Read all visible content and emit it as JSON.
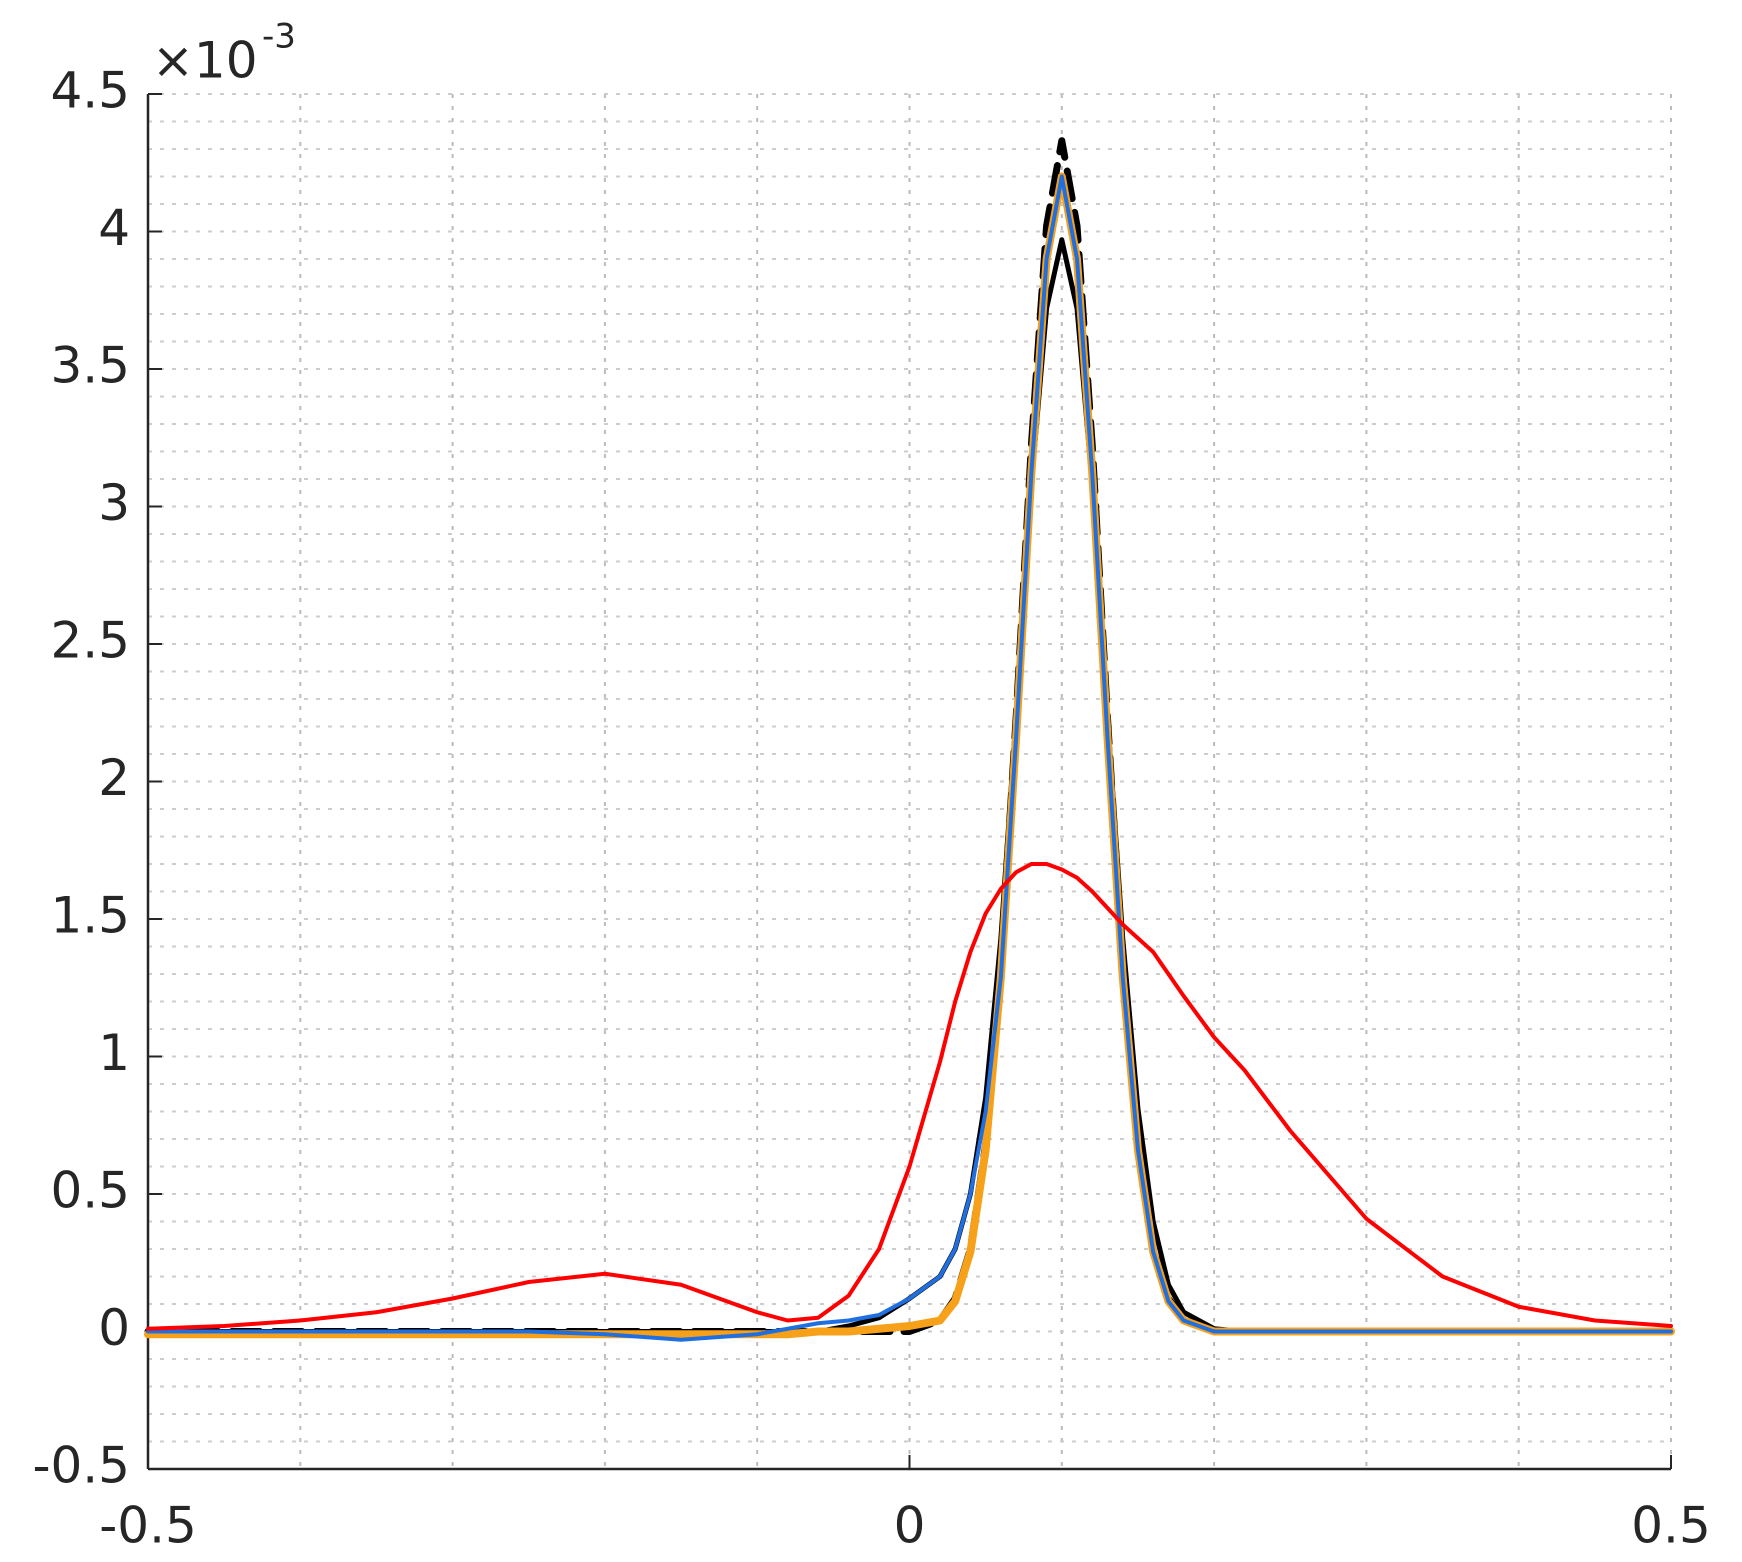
{
  "chart_data": {
    "type": "line",
    "y_multiplier": "×10",
    "y_exponent": "-3",
    "x": [
      -0.5,
      -0.45,
      -0.4,
      -0.35,
      -0.3,
      -0.25,
      -0.2,
      -0.15,
      -0.1,
      -0.08,
      -0.06,
      -0.04,
      -0.02,
      0,
      0.02,
      0.03,
      0.04,
      0.05,
      0.06,
      0.07,
      0.08,
      0.09,
      0.1,
      0.11,
      0.12,
      0.13,
      0.14,
      0.15,
      0.16,
      0.17,
      0.18,
      0.2,
      0.22,
      0.25,
      0.3,
      0.35,
      0.4,
      0.45,
      0.5
    ],
    "series": [
      {
        "color": "#000000",
        "dashed": true,
        "width": 7,
        "values": [
          0,
          0,
          0,
          0,
          0,
          0,
          0,
          0,
          0,
          0,
          0,
          0,
          0,
          0,
          0.04,
          0.12,
          0.3,
          0.68,
          1.33,
          2.23,
          3.22,
          4.02,
          4.33,
          4.02,
          3.22,
          2.23,
          1.33,
          0.68,
          0.3,
          0.12,
          0.04,
          0,
          0,
          0,
          0,
          0,
          0,
          0,
          0
        ]
      },
      {
        "color": "#000000",
        "width": 5,
        "values": [
          0,
          0,
          0,
          0,
          0,
          0,
          0,
          0,
          0,
          0,
          0,
          0.02,
          0.05,
          0.12,
          0.2,
          0.3,
          0.5,
          0.85,
          1.43,
          2.24,
          3.08,
          3.72,
          3.97,
          3.72,
          3.08,
          2.24,
          1.43,
          0.81,
          0.4,
          0.17,
          0.07,
          0.01,
          0,
          0,
          0,
          0,
          0,
          0,
          0
        ]
      },
      {
        "color": "#f7a11a",
        "width": 8,
        "values": [
          -0.01,
          -0.01,
          -0.01,
          -0.01,
          -0.01,
          -0.01,
          -0.01,
          -0.01,
          -0.01,
          -0.01,
          0,
          0,
          0.01,
          0.02,
          0.04,
          0.11,
          0.29,
          0.66,
          1.29,
          2.16,
          3.12,
          3.9,
          4.2,
          3.9,
          3.12,
          2.16,
          1.29,
          0.66,
          0.29,
          0.11,
          0.04,
          0,
          0,
          0,
          0,
          0,
          0,
          0,
          0
        ]
      },
      {
        "color": "#1f6fe0",
        "width": 4,
        "values": [
          0,
          0,
          0,
          0,
          0,
          0,
          -0.01,
          -0.03,
          -0.01,
          0.01,
          0.03,
          0.04,
          0.06,
          0.12,
          0.2,
          0.3,
          0.5,
          0.8,
          1.29,
          2.16,
          3.12,
          3.9,
          4.2,
          3.9,
          3.12,
          2.16,
          1.29,
          0.66,
          0.29,
          0.11,
          0.04,
          0,
          0,
          0,
          0,
          0,
          0,
          0,
          0
        ]
      },
      {
        "color": "#ff0000",
        "width": 4,
        "values": [
          0.01,
          0.02,
          0.04,
          0.07,
          0.12,
          0.18,
          0.21,
          0.17,
          0.07,
          0.04,
          0.05,
          0.13,
          0.3,
          0.6,
          0.98,
          1.2,
          1.38,
          1.52,
          1.61,
          1.67,
          1.7,
          1.7,
          1.68,
          1.65,
          1.6,
          1.54,
          1.48,
          1.43,
          1.38,
          1.3,
          1.22,
          1.07,
          0.95,
          0.73,
          0.41,
          0.2,
          0.09,
          0.04,
          0.02
        ]
      }
    ],
    "xlim": [
      -0.5,
      0.5
    ],
    "xticks": [
      -0.5,
      0,
      0.5
    ],
    "xminor_step": 0.1,
    "ylim": [
      -0.5,
      4.5
    ],
    "yticks": [
      -0.5,
      0,
      0.5,
      1,
      1.5,
      2,
      2.5,
      3,
      3.5,
      4,
      4.5
    ],
    "yminor_step": 0.1,
    "grid": true
  }
}
